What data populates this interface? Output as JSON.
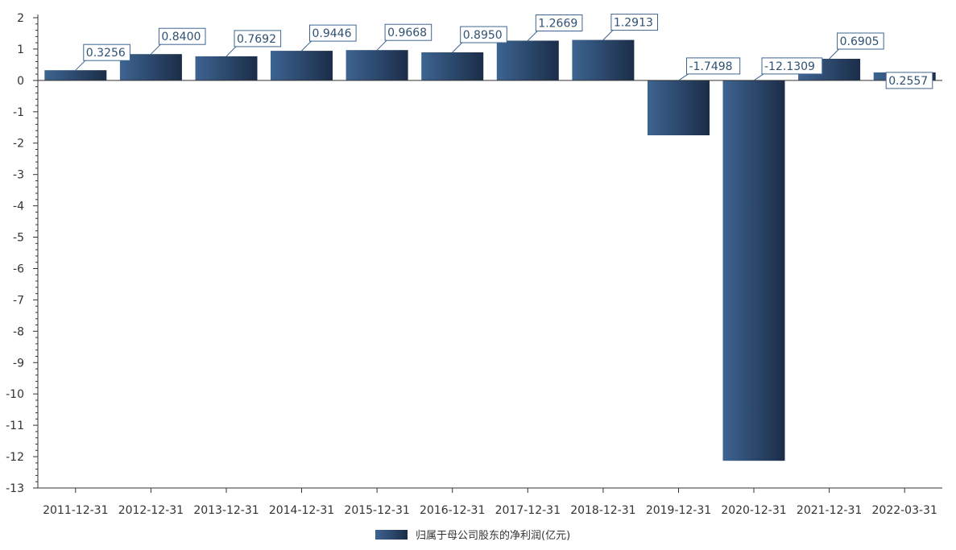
{
  "chart_data": {
    "type": "bar",
    "categories": [
      "2011-12-31",
      "2012-12-31",
      "2013-12-31",
      "2014-12-31",
      "2015-12-31",
      "2016-12-31",
      "2017-12-31",
      "2018-12-31",
      "2019-12-31",
      "2020-12-31",
      "2021-12-31",
      "2022-03-31"
    ],
    "series": [
      {
        "name": "归属于母公司股东的净利润(亿元)",
        "values": [
          0.3256,
          0.84,
          0.7692,
          0.9446,
          0.9668,
          0.895,
          1.2669,
          1.2913,
          -1.7498,
          -12.1309,
          0.6905,
          0.2557
        ],
        "labels": [
          "0.3256",
          "0.8400",
          "0.7692",
          "0.9446",
          "0.9668",
          "0.8950",
          "1.2669",
          "1.2913",
          "-1.7498",
          "-12.1309",
          "0.6905",
          "0.2557"
        ]
      }
    ],
    "ylim": [
      -13,
      2
    ],
    "yticks": [
      2,
      1,
      0,
      -1,
      -2,
      -3,
      -4,
      -5,
      -6,
      -7,
      -8,
      -9,
      -10,
      -11,
      -12,
      -13
    ],
    "xlabel": "",
    "ylabel": "",
    "grid": false,
    "legend_position": "bottom-center",
    "colors": {
      "bar_light": "#3d6491",
      "bar_dark": "#1b2d48",
      "label_border": "#3d6491",
      "label_text": "#2f5173",
      "axis": "#333333"
    }
  }
}
